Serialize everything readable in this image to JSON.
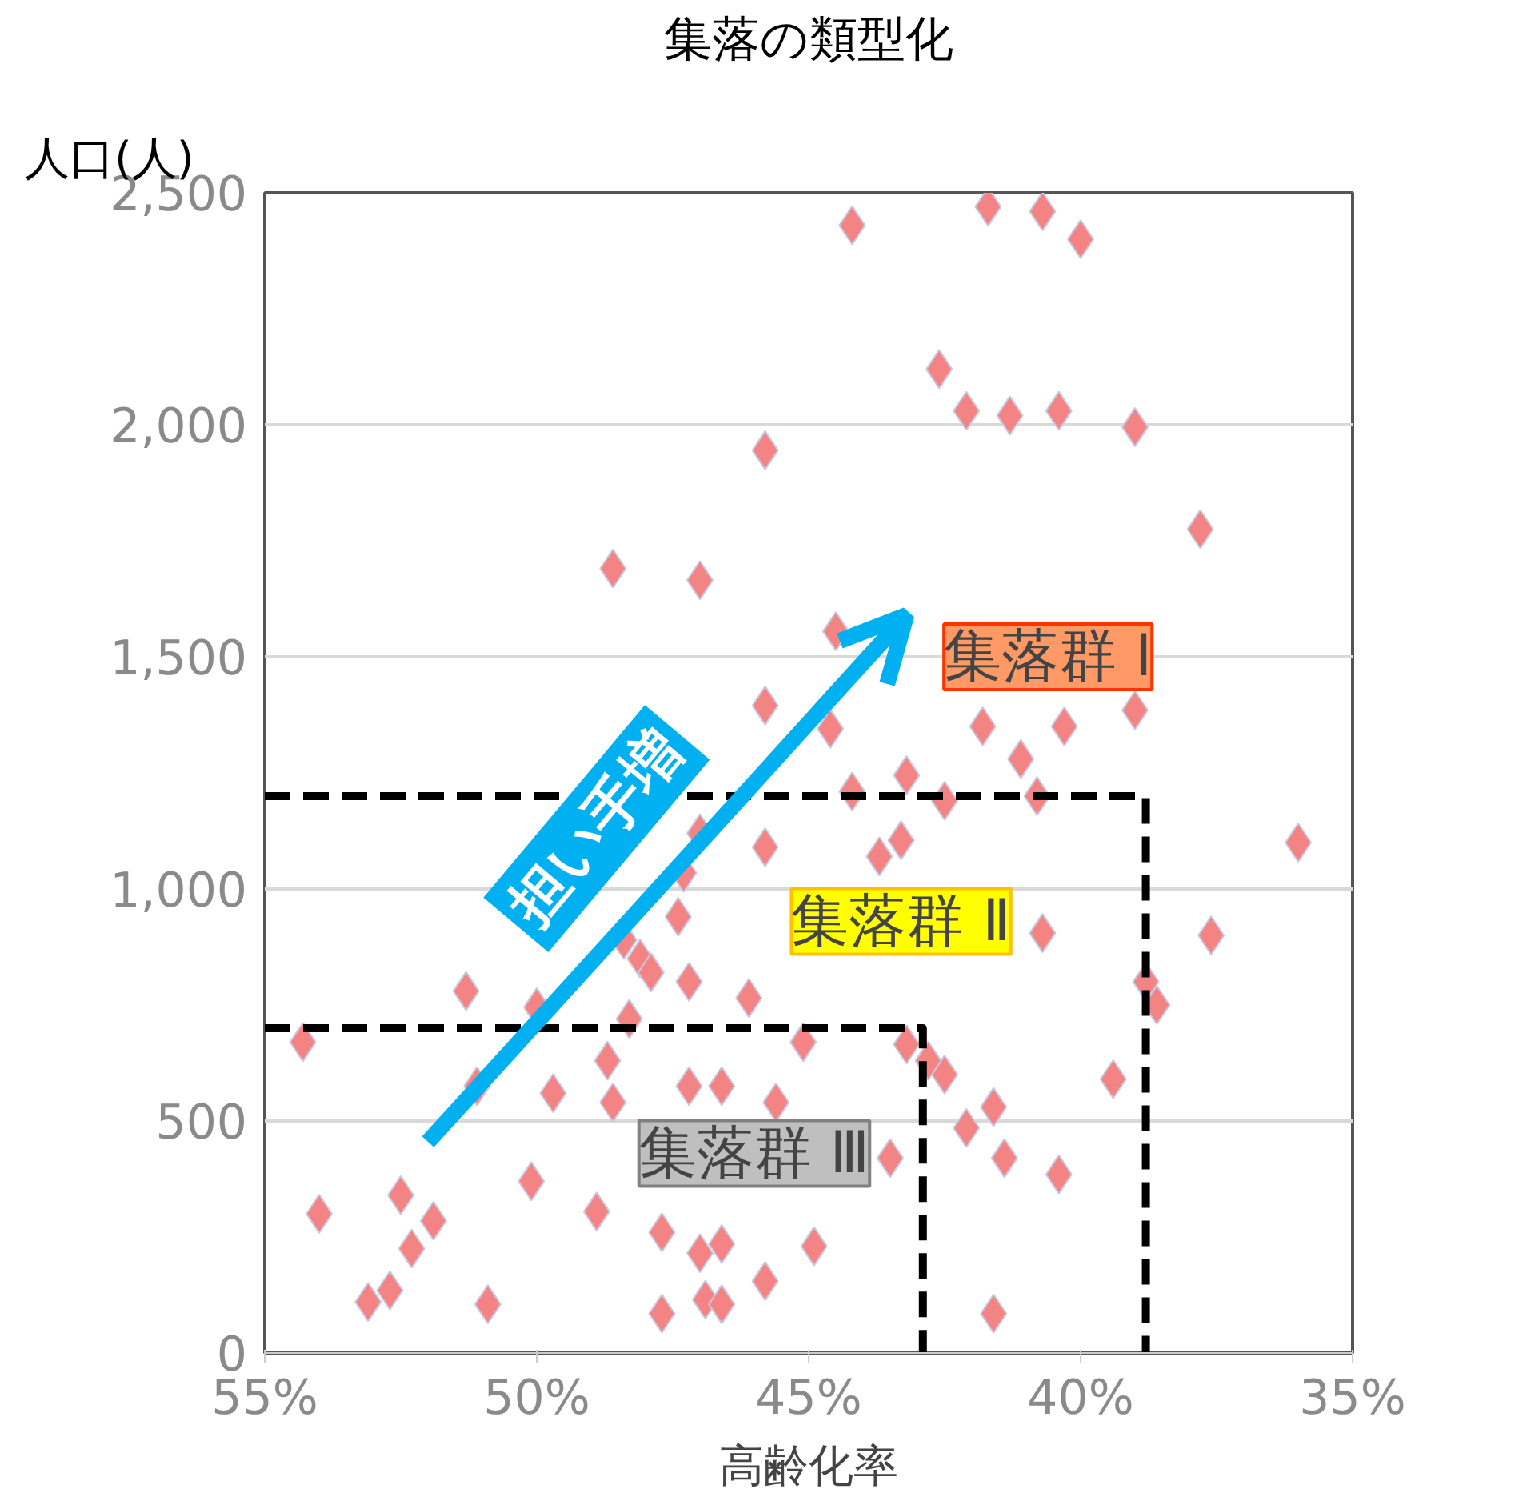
{
  "chart_data": {
    "type": "scatter",
    "title": "集落の類型化",
    "ylabel": "人口(人)",
    "xlabel": "高齢化率",
    "xlim": [
      55,
      35
    ],
    "ylim": [
      0,
      2500
    ],
    "xticks": [
      {
        "value": 55,
        "label": "55%"
      },
      {
        "value": 50,
        "label": "50%"
      },
      {
        "value": 45,
        "label": "45%"
      },
      {
        "value": 40,
        "label": "40%"
      },
      {
        "value": 35,
        "label": "35%"
      }
    ],
    "yticks": [
      {
        "value": 0,
        "label": "0"
      },
      {
        "value": 500,
        "label": "500"
      },
      {
        "value": 1000,
        "label": "1,000"
      },
      {
        "value": 1500,
        "label": "1,500"
      },
      {
        "value": 2000,
        "label": "2,000"
      },
      {
        "value": 2500,
        "label": "2,500"
      }
    ],
    "grid": "y",
    "series": [
      {
        "color": "#f48484",
        "marker": "diamond",
        "x": [
          44.2,
          41.7,
          40.7,
          40.0,
          42.6,
          42.1,
          41.3,
          40.4,
          39.0,
          45.8,
          37.8,
          48.6,
          47.0,
          44.5,
          36.0,
          41.8,
          40.3,
          39.0,
          41.1,
          40.8,
          43.2,
          44.6,
          45.8,
          44.2,
          42.5,
          43.3,
          43.7,
          45.8,
          47.0,
          47.3,
          47.4,
          47.2,
          48.1,
          47.9,
          48.4,
          46.1,
          51.3,
          50.0,
          48.3,
          48.7,
          51.1,
          49.7,
          48.6,
          47.2,
          46.6,
          45.6,
          45.1,
          54.3,
          43.2,
          42.5,
          42.8,
          42.1,
          41.6,
          41.4,
          40.4,
          39.4,
          40.7,
          38.8,
          38.6,
          37.6,
          54.0,
          52.5,
          51.9,
          52.3,
          53.1,
          52.7,
          50.9,
          47.7,
          47.0,
          46.6,
          46.9,
          46.6,
          47.7,
          45.8,
          44.9,
          41.6,
          48.9,
          50.1,
          43.5
        ],
        "values": [
          2430,
          2470,
          2460,
          2400,
          2120,
          2030,
          2020,
          2030,
          1995,
          1945,
          1775,
          1690,
          1665,
          1555,
          1100,
          1350,
          1350,
          1385,
          1280,
          1200,
          1245,
          1345,
          1395,
          1210,
          1190,
          1105,
          1070,
          1090,
          1120,
          1035,
          940,
          800,
          850,
          820,
          890,
          765,
          780,
          745,
          720,
          630,
          575,
          560,
          540,
          575,
          575,
          540,
          670,
          670,
          665,
          600,
          630,
          485,
          530,
          420,
          385,
          590,
          905,
          800,
          750,
          900,
          300,
          340,
          285,
          225,
          110,
          135,
          105,
          260,
          215,
          235,
          115,
          105,
          85,
          155,
          230,
          85,
          305,
          370,
          420
        ]
      },
      {
        "type": "line",
        "color": "#000000",
        "line_style": "dashed",
        "marker": "none",
        "x": [
          55,
          38.8,
          38.8
        ],
        "values": [
          1200,
          1200,
          0
        ]
      },
      {
        "type": "line",
        "color": "#000000",
        "line_style": "dashed",
        "marker": "none",
        "x": [
          55,
          42.9,
          42.9
        ],
        "values": [
          700,
          700,
          0
        ]
      }
    ],
    "annotations": [
      "集落群 Ⅰ",
      "集落群 Ⅱ",
      "集落群 Ⅲ",
      "担い手増"
    ]
  }
}
